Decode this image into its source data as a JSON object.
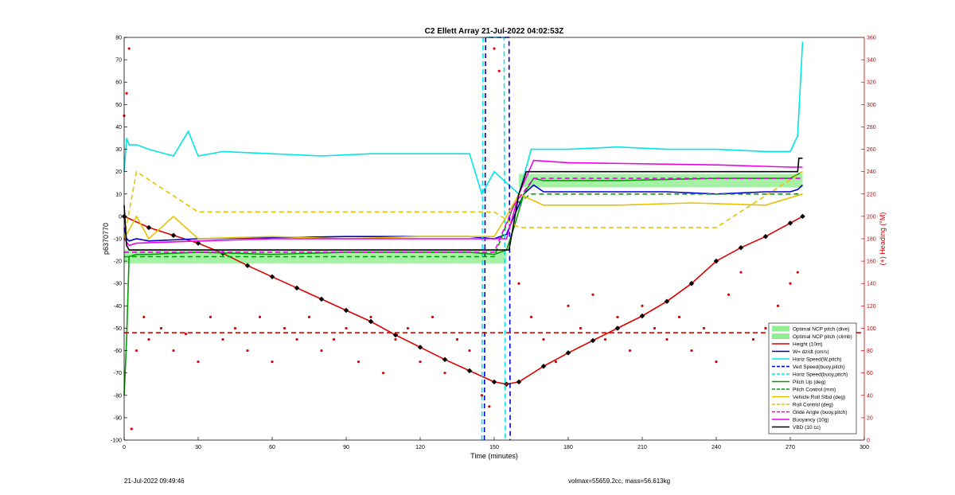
{
  "chart_data": {
    "type": "line",
    "title": "C2 Ellett Array 21-Jul-2022 04:02:53Z",
    "xlabel": "Time (minutes)",
    "ylabel": "p6370770",
    "y2label": "(+) Heading (°M)",
    "xlim": [
      0,
      300
    ],
    "ylim": [
      -100,
      80
    ],
    "y2lim": [
      0,
      360
    ],
    "xticks": [
      0,
      30,
      60,
      90,
      120,
      150,
      180,
      210,
      240,
      270,
      300
    ],
    "yticks": [
      -100,
      -90,
      -80,
      -70,
      -60,
      -50,
      -40,
      -30,
      -20,
      -10,
      0,
      10,
      20,
      30,
      40,
      50,
      60,
      70,
      80
    ],
    "y2ticks": [
      0,
      20,
      40,
      60,
      80,
      100,
      120,
      140,
      160,
      180,
      200,
      220,
      240,
      260,
      280,
      300,
      320,
      340,
      360
    ],
    "grid": false,
    "legend_position": "bottom-right",
    "legend": [
      {
        "label": "Optimal NCP pitch (dive)",
        "color": "#90ee90",
        "style": "patch"
      },
      {
        "label": "Optimal NCP pitch (climb)",
        "color": "#90ee90",
        "style": "patch"
      },
      {
        "label": "Height (10m)",
        "color": "#dd0000",
        "style": "solid"
      },
      {
        "label": "W= dz/dt (cm/s)",
        "color": "#0000cc",
        "style": "solid"
      },
      {
        "label": "Horiz Speed(W,pitch)",
        "color": "#00e5e5",
        "style": "solid"
      },
      {
        "label": "Vert Speed(buoy,pitch)",
        "color": "#0000cc",
        "style": "dashed"
      },
      {
        "label": "Horiz Speed(buoy,pitch)",
        "color": "#00e5e5",
        "style": "dashed"
      },
      {
        "label": "Pitch Up (deg)",
        "color": "#00a000",
        "style": "solid"
      },
      {
        "label": "Pitch Control (mm)",
        "color": "#00a000",
        "style": "dashed"
      },
      {
        "label": "Vehicle Roll Stbd (deg)",
        "color": "#e6c200",
        "style": "solid"
      },
      {
        "label": "Roll Control (deg)",
        "color": "#e6c200",
        "style": "dashed"
      },
      {
        "label": "Glide Angle (buoy,pitch)",
        "color": "#ee00ee",
        "style": "dashed"
      },
      {
        "label": "Buoyancy (10g)",
        "color": "#ee00ee",
        "style": "solid"
      },
      {
        "label": "VBD (10 cc)",
        "color": "#000000",
        "style": "solid"
      }
    ],
    "series": [
      {
        "name": "Optimal NCP pitch (dive)",
        "kind": "band",
        "color": "#90ee90",
        "x": [
          0,
          155
        ],
        "y_low": -21,
        "y_high": -15
      },
      {
        "name": "Optimal NCP pitch (climb)",
        "kind": "band",
        "color": "#90ee90",
        "x": [
          160,
          275
        ],
        "y_low": 13,
        "y_high": 19
      },
      {
        "name": "Height (10m)",
        "color": "#dd0000",
        "style": "solid",
        "markers": "diamond",
        "x": [
          0,
          10,
          20,
          30,
          40,
          50,
          60,
          70,
          80,
          90,
          100,
          110,
          120,
          130,
          140,
          150,
          155,
          160,
          170,
          180,
          190,
          200,
          210,
          220,
          230,
          240,
          250,
          260,
          270,
          275
        ],
        "y": [
          0,
          -5,
          -8.5,
          -12,
          -16.5,
          -22,
          -27,
          -32,
          -37,
          -42,
          -47,
          -53,
          -58.5,
          -64,
          -69,
          -74,
          -75,
          -74,
          -67,
          -61,
          -55.5,
          -50,
          -44.5,
          -38,
          -30,
          -20,
          -14,
          -9,
          -3,
          0
        ]
      },
      {
        "name": "W= dz/dt (cm/s)",
        "color": "#0000cc",
        "style": "solid",
        "x": [
          0,
          1,
          2,
          5,
          10,
          30,
          60,
          90,
          120,
          140,
          150,
          155,
          158,
          162,
          166,
          170,
          180,
          200,
          220,
          240,
          260,
          270,
          273,
          275
        ],
        "y": [
          -5,
          -10,
          -11,
          -10,
          -11,
          -10,
          -9.5,
          -9,
          -9,
          -9,
          -10,
          -8,
          0,
          10,
          14,
          11,
          11,
          11,
          11,
          10,
          11,
          11,
          12,
          14
        ]
      },
      {
        "name": "Horiz Speed(W,pitch)",
        "color": "#00e5e5",
        "style": "solid",
        "x": [
          0,
          1,
          2,
          5,
          10,
          20,
          26,
          30,
          40,
          60,
          80,
          100,
          120,
          140,
          145,
          150,
          155,
          160,
          165,
          170,
          180,
          200,
          220,
          240,
          260,
          270,
          273,
          275
        ],
        "y": [
          20,
          35,
          32,
          32,
          30,
          27,
          38,
          27,
          29,
          28,
          27,
          28,
          28,
          28,
          10,
          20,
          15,
          10,
          30,
          30,
          30,
          31,
          30,
          30,
          29,
          29,
          36,
          78
        ]
      },
      {
        "name": "Vert Speed(buoy,pitch)",
        "color": "#0000cc",
        "style": "dashed",
        "x": [
          146,
          146.5,
          156,
          156.5
        ],
        "y": [
          -100,
          80,
          80,
          -100
        ]
      },
      {
        "name": "Horiz Speed(buoy,pitch)",
        "color": "#00e5e5",
        "style": "dashed",
        "x": [
          145,
          145.5,
          154,
          154.5
        ],
        "y": [
          -100,
          80,
          80,
          -100
        ]
      },
      {
        "name": "Pitch Up (deg)",
        "color": "#00a000",
        "style": "solid",
        "x": [
          0,
          1,
          2,
          5,
          10,
          30,
          60,
          90,
          120,
          140,
          150,
          155,
          158,
          162,
          166,
          170,
          200,
          240,
          270,
          275
        ],
        "y": [
          -80,
          -55,
          -18,
          -17,
          -17,
          -16,
          -17,
          -16,
          -16,
          -16,
          -17,
          -15,
          -5,
          10,
          17,
          16,
          16,
          17,
          17,
          20
        ]
      },
      {
        "name": "Pitch Control (mm)",
        "color": "#00a000",
        "style": "dashed",
        "x": [
          0,
          5,
          150,
          158,
          165,
          275
        ],
        "y": [
          -18,
          -18,
          -18,
          5,
          10,
          10
        ]
      },
      {
        "name": "Vehicle Roll Stbd (deg)",
        "color": "#e6c200",
        "style": "solid",
        "x": [
          0,
          5,
          10,
          20,
          30,
          60,
          90,
          120,
          150,
          155,
          160,
          170,
          200,
          230,
          260,
          275
        ],
        "y": [
          -10,
          0,
          -10,
          0,
          -10,
          -9,
          -10,
          -9,
          -9,
          0,
          10,
          5,
          5,
          6,
          5,
          10
        ]
      },
      {
        "name": "Roll Control (deg)",
        "color": "#e6c200",
        "style": "dashed",
        "x": [
          0,
          5,
          30,
          60,
          90,
          120,
          150,
          160,
          200,
          240,
          275
        ],
        "y": [
          -10,
          20,
          2,
          2,
          2,
          2,
          2,
          -5,
          -5,
          -5,
          20
        ]
      },
      {
        "name": "Glide Angle (buoy,pitch)",
        "color": "#ee00ee",
        "style": "dashed",
        "x": [
          0,
          5,
          150,
          158,
          166,
          275
        ],
        "y": [
          -16,
          -16,
          -16,
          5,
          17,
          17
        ]
      },
      {
        "name": "Buoyancy (10g)",
        "color": "#ee00ee",
        "style": "solid",
        "x": [
          0,
          2,
          5,
          30,
          60,
          100,
          150,
          155,
          160,
          166,
          180,
          240,
          270,
          275
        ],
        "y": [
          -10,
          -13,
          -12,
          -11,
          -10,
          -10,
          -10,
          -10,
          10,
          25,
          24,
          23,
          22,
          22
        ]
      },
      {
        "name": "VBD (10 cc)",
        "color": "#000000",
        "style": "solid",
        "x": [
          0,
          1,
          2,
          155,
          156,
          160,
          163,
          273,
          273.5,
          275
        ],
        "y": [
          5,
          -13,
          -15,
          -15,
          -15,
          10,
          20,
          20,
          26,
          26
        ]
      },
      {
        "name": "Heading",
        "axis": "y2",
        "color": "#dd0000",
        "style": "scatter",
        "x": [
          0,
          1,
          2,
          3,
          5,
          8,
          10,
          15,
          20,
          25,
          30,
          35,
          40,
          45,
          50,
          55,
          60,
          65,
          70,
          75,
          80,
          85,
          90,
          95,
          100,
          105,
          110,
          115,
          120,
          125,
          130,
          135,
          140,
          145,
          148,
          150,
          152,
          155,
          160,
          165,
          170,
          175,
          180,
          185,
          190,
          195,
          200,
          205,
          210,
          215,
          220,
          225,
          230,
          235,
          240,
          245,
          250,
          255,
          260,
          265,
          270,
          273
        ],
        "y": [
          290,
          310,
          350,
          10,
          80,
          110,
          90,
          100,
          80,
          95,
          70,
          110,
          90,
          100,
          80,
          110,
          70,
          100,
          90,
          110,
          80,
          90,
          100,
          70,
          110,
          60,
          90,
          100,
          70,
          110,
          60,
          90,
          80,
          40,
          30,
          350,
          330,
          50,
          140,
          110,
          90,
          70,
          120,
          100,
          130,
          90,
          110,
          80,
          120,
          100,
          90,
          110,
          80,
          100,
          70,
          130,
          150,
          90,
          100,
          120,
          140,
          150
        ]
      },
      {
        "name": "Heading reference",
        "axis": "y2",
        "color": "#dd0000",
        "style": "dashed",
        "x": [
          0,
          300
        ],
        "y": [
          96,
          96
        ]
      }
    ]
  },
  "footer": {
    "left": "21-Jul-2022 09:49:46",
    "right": "volmax=55659.2cc, mass=56.613kg"
  }
}
